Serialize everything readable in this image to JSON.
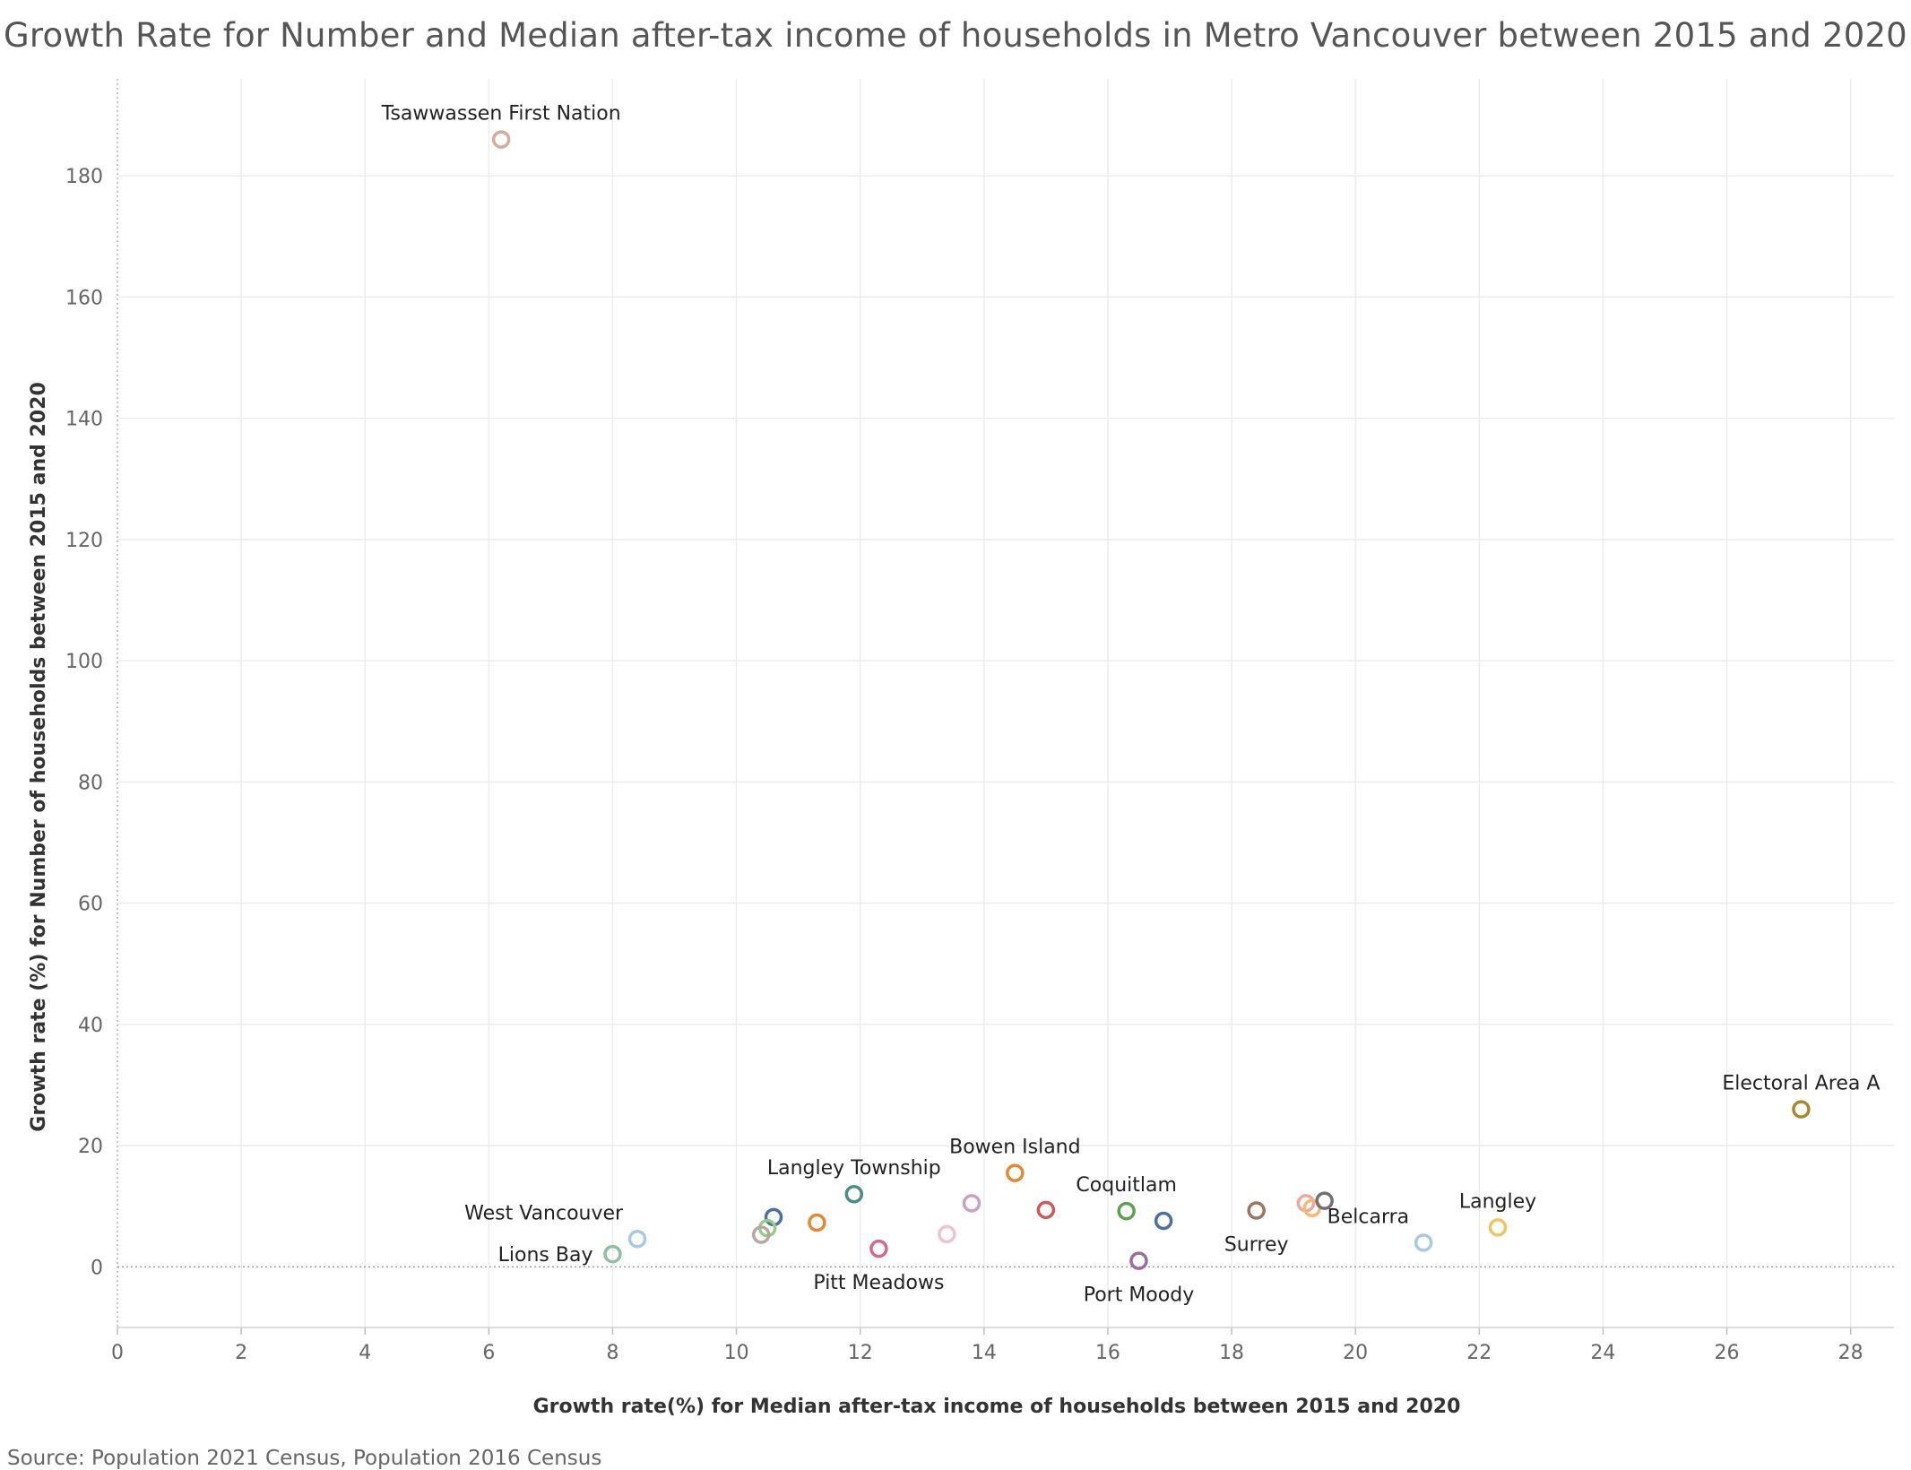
{
  "chart_data": {
    "type": "scatter",
    "title": "Growth Rate for Number and Median after-tax income of households in Metro Vancouver between 2015 and 2020",
    "xlabel": "Growth rate(%) for Median after-tax income of households between 2015 and 2020",
    "ylabel": "Growth rate (%) for Number of households between 2015 and 2020",
    "xlim": [
      0,
      28.7
    ],
    "ylim": [
      -10,
      196
    ],
    "x_ticks": [
      "0",
      "2",
      "4",
      "6",
      "8",
      "10",
      "12",
      "14",
      "16",
      "18",
      "20",
      "22",
      "24",
      "26",
      "28"
    ],
    "y_ticks": [
      "0",
      "20",
      "40",
      "60",
      "80",
      "100",
      "120",
      "140",
      "160",
      "180"
    ],
    "grid": true,
    "marker": "hollow-circle",
    "points": [
      {
        "x": 6.2,
        "y": 186.0,
        "label": "Tsawwassen First Nation",
        "color": "#d7ab9c",
        "label_pos": "above"
      },
      {
        "x": 27.2,
        "y": 26.0,
        "label": "Electoral Area A",
        "color": "#a8872d",
        "label_pos": "above"
      },
      {
        "x": 14.5,
        "y": 15.5,
        "label": "Bowen Island",
        "color": "#e08a33",
        "label_pos": "above"
      },
      {
        "x": 11.9,
        "y": 12.0,
        "label": "Langley Township",
        "color": "#4d8c82",
        "label_pos": "above"
      },
      {
        "x": 16.3,
        "y": 9.2,
        "label": "Coquitlam",
        "color": "#5ea04b",
        "label_pos": "above"
      },
      {
        "x": 22.3,
        "y": 6.5,
        "label": "Langley",
        "color": "#ecc75f",
        "label_pos": "above"
      },
      {
        "x": 21.1,
        "y": 4.0,
        "label": "Belcarra",
        "color": "#a6cbe0",
        "label_pos": "above-left"
      },
      {
        "x": 18.4,
        "y": 9.3,
        "label": "Surrey",
        "color": "#9c7563",
        "label_pos": "below"
      },
      {
        "x": 8.4,
        "y": 4.6,
        "label": "West Vancouver",
        "color": "#a6cbe0",
        "label_pos": "above-left"
      },
      {
        "x": 8.0,
        "y": 2.1,
        "label": "Lions Bay",
        "color": "#8ebfa6",
        "label_pos": "left"
      },
      {
        "x": 12.3,
        "y": 3.0,
        "label": "Pitt Meadows",
        "color": "#d26b86",
        "label_pos": "below"
      },
      {
        "x": 16.5,
        "y": 1.0,
        "label": "Port Moody",
        "color": "#9a6c9f",
        "label_pos": "below"
      },
      {
        "x": 10.6,
        "y": 8.2,
        "label": "",
        "color": "#4c6fa3"
      },
      {
        "x": 10.5,
        "y": 6.4,
        "label": "",
        "color": "#98cb86"
      },
      {
        "x": 10.4,
        "y": 5.3,
        "label": "",
        "color": "#b5a8a1"
      },
      {
        "x": 11.3,
        "y": 7.3,
        "label": "",
        "color": "#e08a33"
      },
      {
        "x": 13.4,
        "y": 5.4,
        "label": "",
        "color": "#f0c1cf"
      },
      {
        "x": 13.8,
        "y": 10.5,
        "label": "",
        "color": "#c8a1c6"
      },
      {
        "x": 15.0,
        "y": 9.4,
        "label": "",
        "color": "#cf5757"
      },
      {
        "x": 16.9,
        "y": 7.6,
        "label": "",
        "color": "#4c6fa3"
      },
      {
        "x": 19.2,
        "y": 10.5,
        "label": "",
        "color": "#f0a79b"
      },
      {
        "x": 19.3,
        "y": 9.7,
        "label": "",
        "color": "#f5b877"
      },
      {
        "x": 19.5,
        "y": 10.9,
        "label": "",
        "color": "#707070"
      }
    ]
  },
  "source": "Source: Population 2021 Census, Population 2016 Census"
}
